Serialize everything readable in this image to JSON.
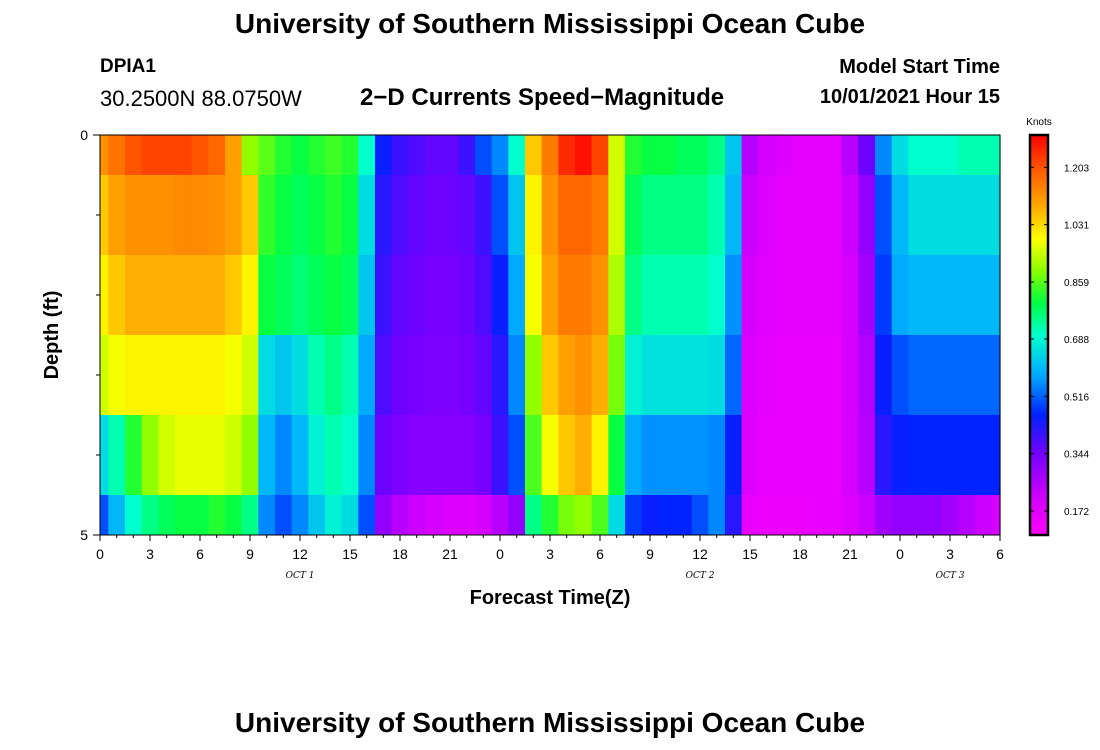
{
  "header": {
    "title_top": "University of Southern Mississippi Ocean Cube",
    "station": "DPIA1",
    "coords": "30.2500N  88.0750W",
    "subtitle": "2−D Currents Speed−Magnitude",
    "model_label": "Model Start Time",
    "model_time": "10/01/2021 Hour 15",
    "title_bottom": "University of Southern Mississippi Ocean Cube"
  },
  "chart_data": {
    "type": "heatmap",
    "title": "2-D Currents Speed-Magnitude",
    "xlabel": "Forecast Time(Z)",
    "ylabel": "Depth (ft)",
    "x_hours_range": [
      0,
      54
    ],
    "y_range": [
      0,
      5
    ],
    "y_tick_labels": [
      "0",
      "5"
    ],
    "y_tick_values": [
      0,
      5
    ],
    "y_minor_ticks": [
      1,
      2,
      3,
      4
    ],
    "x_tick_labels": [
      "0",
      "3",
      "6",
      "9",
      "12",
      "15",
      "18",
      "21",
      "0",
      "3",
      "6",
      "9",
      "12",
      "15",
      "18",
      "21",
      "0",
      "3",
      "6"
    ],
    "date_labels": [
      {
        "text": "OCT 1",
        "hour": 12
      },
      {
        "text": "OCT 2",
        "hour": 36
      },
      {
        "text": "OCT 3",
        "hour": 51
      }
    ],
    "colorbar": {
      "title": "Knots",
      "min": 0.1,
      "max": 1.3,
      "ticks": [
        1.203,
        1.031,
        0.859,
        0.688,
        0.516,
        0.344,
        0.172
      ],
      "tick_labels": [
        "1.203",
        "1.031",
        "0.859",
        "0.688",
        "0.516",
        "0.344",
        "0.172"
      ]
    },
    "depth_rows": [
      {
        "depth": [
          0,
          0.5
        ],
        "knots": [
          1.12,
          1.16,
          1.2,
          1.22,
          1.22,
          1.22,
          1.2,
          1.18,
          1.1,
          0.9,
          0.86,
          0.82,
          0.8,
          0.82,
          0.84,
          0.82,
          0.7,
          0.45,
          0.4,
          0.38,
          0.36,
          0.36,
          0.4,
          0.5,
          0.55,
          0.7,
          1.05,
          1.15,
          1.25,
          1.28,
          1.22,
          0.95,
          0.82,
          0.8,
          0.8,
          0.78,
          0.78,
          0.75,
          0.62,
          0.25,
          0.2,
          0.18,
          0.16,
          0.16,
          0.16,
          0.25,
          0.35,
          0.55,
          0.65,
          0.7,
          0.7,
          0.7,
          0.72,
          0.72,
          0.72
        ]
      },
      {
        "depth": [
          0.5,
          1.5
        ],
        "knots": [
          1.05,
          1.1,
          1.12,
          1.12,
          1.12,
          1.13,
          1.13,
          1.12,
          1.1,
          1.05,
          0.83,
          0.8,
          0.78,
          0.8,
          0.82,
          0.8,
          0.65,
          0.42,
          0.38,
          0.36,
          0.35,
          0.35,
          0.36,
          0.4,
          0.5,
          0.62,
          1.0,
          1.12,
          1.18,
          1.18,
          1.15,
          0.95,
          0.78,
          0.75,
          0.75,
          0.75,
          0.75,
          0.72,
          0.6,
          0.22,
          0.18,
          0.16,
          0.16,
          0.16,
          0.16,
          0.22,
          0.3,
          0.5,
          0.6,
          0.65,
          0.65,
          0.65,
          0.65,
          0.65,
          0.65
        ]
      },
      {
        "depth": [
          1.5,
          2.5
        ],
        "knots": [
          1.0,
          1.05,
          1.08,
          1.08,
          1.08,
          1.08,
          1.08,
          1.08,
          1.05,
          1.0,
          0.8,
          0.78,
          0.76,
          0.78,
          0.8,
          0.78,
          0.62,
          0.4,
          0.36,
          0.35,
          0.34,
          0.34,
          0.35,
          0.38,
          0.45,
          0.58,
          0.98,
          1.1,
          1.15,
          1.15,
          1.12,
          0.92,
          0.75,
          0.72,
          0.72,
          0.72,
          0.72,
          0.7,
          0.56,
          0.2,
          0.17,
          0.16,
          0.16,
          0.16,
          0.16,
          0.2,
          0.28,
          0.48,
          0.58,
          0.6,
          0.6,
          0.6,
          0.6,
          0.6,
          0.6
        ]
      },
      {
        "depth": [
          2.5,
          3.5
        ],
        "knots": [
          0.95,
          0.98,
          1.0,
          1.0,
          1.0,
          1.0,
          1.0,
          1.0,
          0.98,
          0.95,
          0.65,
          0.62,
          0.65,
          0.72,
          0.75,
          0.72,
          0.58,
          0.38,
          0.35,
          0.34,
          0.33,
          0.33,
          0.34,
          0.36,
          0.42,
          0.55,
          0.9,
          1.05,
          1.1,
          1.12,
          1.08,
          0.88,
          0.68,
          0.66,
          0.66,
          0.66,
          0.66,
          0.65,
          0.52,
          0.18,
          0.16,
          0.15,
          0.15,
          0.15,
          0.15,
          0.2,
          0.26,
          0.45,
          0.5,
          0.52,
          0.52,
          0.52,
          0.52,
          0.52,
          0.52
        ]
      },
      {
        "depth": [
          3.5,
          4.5
        ],
        "knots": [
          0.65,
          0.72,
          0.82,
          0.9,
          0.95,
          0.97,
          0.97,
          0.97,
          0.95,
          0.9,
          0.6,
          0.55,
          0.6,
          0.68,
          0.72,
          0.7,
          0.55,
          0.35,
          0.33,
          0.32,
          0.32,
          0.32,
          0.32,
          0.34,
          0.4,
          0.5,
          0.85,
          0.98,
          1.05,
          1.08,
          1.0,
          0.8,
          0.58,
          0.56,
          0.56,
          0.56,
          0.56,
          0.55,
          0.45,
          0.18,
          0.15,
          0.15,
          0.15,
          0.15,
          0.15,
          0.2,
          0.25,
          0.42,
          0.45,
          0.46,
          0.46,
          0.46,
          0.46,
          0.46,
          0.46
        ]
      },
      {
        "depth": [
          4.5,
          5
        ],
        "knots": [
          0.5,
          0.6,
          0.7,
          0.75,
          0.78,
          0.8,
          0.8,
          0.82,
          0.8,
          0.75,
          0.55,
          0.5,
          0.55,
          0.62,
          0.68,
          0.65,
          0.5,
          0.3,
          0.25,
          0.22,
          0.2,
          0.18,
          0.18,
          0.2,
          0.25,
          0.3,
          0.75,
          0.82,
          0.88,
          0.9,
          0.85,
          0.65,
          0.48,
          0.45,
          0.46,
          0.46,
          0.5,
          0.55,
          0.42,
          0.15,
          0.14,
          0.14,
          0.14,
          0.15,
          0.15,
          0.18,
          0.22,
          0.28,
          0.3,
          0.3,
          0.3,
          0.28,
          0.25,
          0.22,
          0.2
        ]
      }
    ]
  }
}
